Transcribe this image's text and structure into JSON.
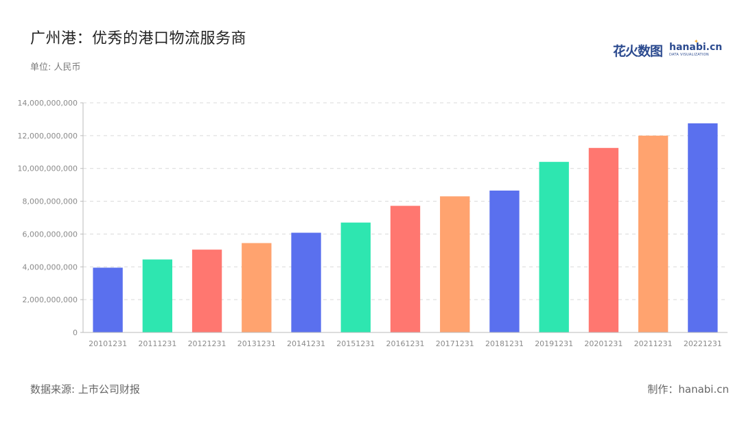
{
  "header": {
    "title": "广州港：优秀的港口物流服务商",
    "unit": "单位: 人民币"
  },
  "logo": {
    "cn": "花火数图",
    "en": "hanabi.cn",
    "sub": "DATA VISUALIZATION"
  },
  "footer": {
    "source": "数据来源: 上市公司财报",
    "credit": "制作：hanabi.cn"
  },
  "colors": {
    "palette": [
      "#5a70ee",
      "#2ee6b0",
      "#ff7770",
      "#ffa36f"
    ],
    "grid": "#d9d9d9",
    "axis": "#bbbbbb"
  },
  "chart_data": {
    "type": "bar",
    "categories": [
      "20101231",
      "20111231",
      "20121231",
      "20131231",
      "20141231",
      "20151231",
      "20161231",
      "20171231",
      "20181231",
      "20191231",
      "20201231",
      "20211231",
      "20221231"
    ],
    "values": [
      3950000000,
      4450000000,
      5050000000,
      5450000000,
      6080000000,
      6700000000,
      7720000000,
      8300000000,
      8650000000,
      10400000000,
      11250000000,
      12000000000,
      12750000000
    ],
    "ylim": [
      0,
      14000000000
    ],
    "yticks": [
      "0",
      "2,000,000,000",
      "4,000,000,000",
      "6,000,000,000",
      "8,000,000,000",
      "10,000,000,000",
      "12,000,000,000",
      "14,000,000,000"
    ],
    "ytick_values": [
      0,
      2000000000,
      4000000000,
      6000000000,
      8000000000,
      10000000000,
      12000000000,
      14000000000
    ],
    "grid": true,
    "legend": "none"
  }
}
